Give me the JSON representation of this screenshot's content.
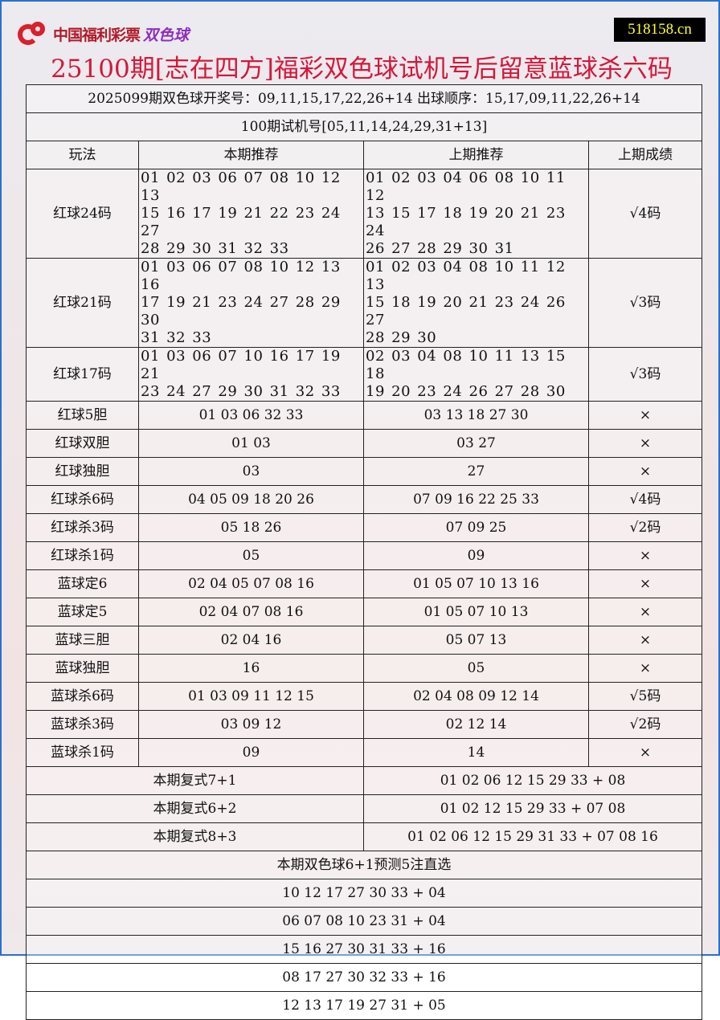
{
  "header": {
    "logo_text": "中国福利彩票",
    "logo_text2": "双色球",
    "site": "518158.cn",
    "title": "25100期[志在四方]福彩双色球试机号后留意蓝球杀六码"
  },
  "info": {
    "draw": "2025099期双色球开奖号：09,11,15,17,22,26+14 出球顺序：15,17,09,11,22,26+14",
    "trial": "100期试机号[05,11,14,24,29,31+13]"
  },
  "columns": [
    "玩法",
    "本期推荐",
    "上期推荐",
    "上期成绩"
  ],
  "rows": [
    {
      "name": "红球24码",
      "current": [
        "01 02 03 06 07 08 10 12 13",
        "15 16 17 19 21 22 23 24 27",
        "28 29 30 31 32 33"
      ],
      "previous": [
        "01 02 03 04 06 08 10 11 12",
        "13 15 17 18 19 20 21 23 24",
        "26 27 28 29 30 31"
      ],
      "result": "√4码"
    },
    {
      "name": "红球21码",
      "current": [
        "01 03 06 07 08 10 12 13 16",
        "17 19 21 23 24 27 28 29 30",
        "31 32 33"
      ],
      "previous": [
        "01 02 03 04 08 10 11 12 13",
        "15 18 19 20 21 23 24 26 27",
        "28 29 30"
      ],
      "result": "√3码"
    },
    {
      "name": "红球17码",
      "current": [
        "01 03 06 07 10 16 17 19 21",
        "23 24 27 29 30 31 32 33"
      ],
      "previous": [
        "02 03 04 08 10 11 13 15 18",
        "19 20 23 24 26 27 28 30"
      ],
      "result": "√3码"
    },
    {
      "name": "红球5胆",
      "current": "01 03 06 32 33",
      "previous": "03 13 18 27 30",
      "result": "×"
    },
    {
      "name": "红球双胆",
      "current": "01 03",
      "previous": "03 27",
      "result": "×"
    },
    {
      "name": "红球独胆",
      "current": "03",
      "previous": "27",
      "result": "×"
    },
    {
      "name": "红球杀6码",
      "current": "04 05 09 18 20 26",
      "previous": "07 09 16 22 25 33",
      "result": "√4码"
    },
    {
      "name": "红球杀3码",
      "current": "05 18 26",
      "previous": "07 09 25",
      "result": "√2码"
    },
    {
      "name": "红球杀1码",
      "current": "05",
      "previous": "09",
      "result": "×"
    },
    {
      "name": "蓝球定6",
      "current": "02 04 05 07 08 16",
      "previous": "01 05 07 10 13 16",
      "result": "×"
    },
    {
      "name": "蓝球定5",
      "current": "02 04 07 08 16",
      "previous": "01 05 07 10 13",
      "result": "×"
    },
    {
      "name": "蓝球三胆",
      "current": "02 04 16",
      "previous": "05 07 13",
      "result": "×"
    },
    {
      "name": "蓝球独胆",
      "current": "16",
      "previous": "05",
      "result": "×"
    },
    {
      "name": "蓝球杀6码",
      "current": "01 03 09 11 12 15",
      "previous": "02 04 08 09 12 14",
      "result": "√5码"
    },
    {
      "name": "蓝球杀3码",
      "current": "03 09 12",
      "previous": "02 12 14",
      "result": "√2码"
    },
    {
      "name": "蓝球杀1码",
      "current": "09",
      "previous": "14",
      "result": "×"
    }
  ],
  "fushi": [
    {
      "label": "本期复式7+1",
      "value": "01 02 06 12 15 29 33 + 08"
    },
    {
      "label": "本期复式6+2",
      "value": "01 02 12 15 29 33 + 07 08"
    },
    {
      "label": "本期复式8+3",
      "value": "01 02 06 12 15 29 31 33 + 07 08 16"
    }
  ],
  "picks": {
    "title": "本期双色球6+1预测5注直选",
    "items": [
      "10 12 17 27 30 33 + 04",
      "06 07 08 10 23 31 + 04",
      "15 16 27 30 31 33 + 16",
      "08 17 27 30 32 33 + 16",
      "12 13 17 19 27 31 + 05"
    ]
  }
}
